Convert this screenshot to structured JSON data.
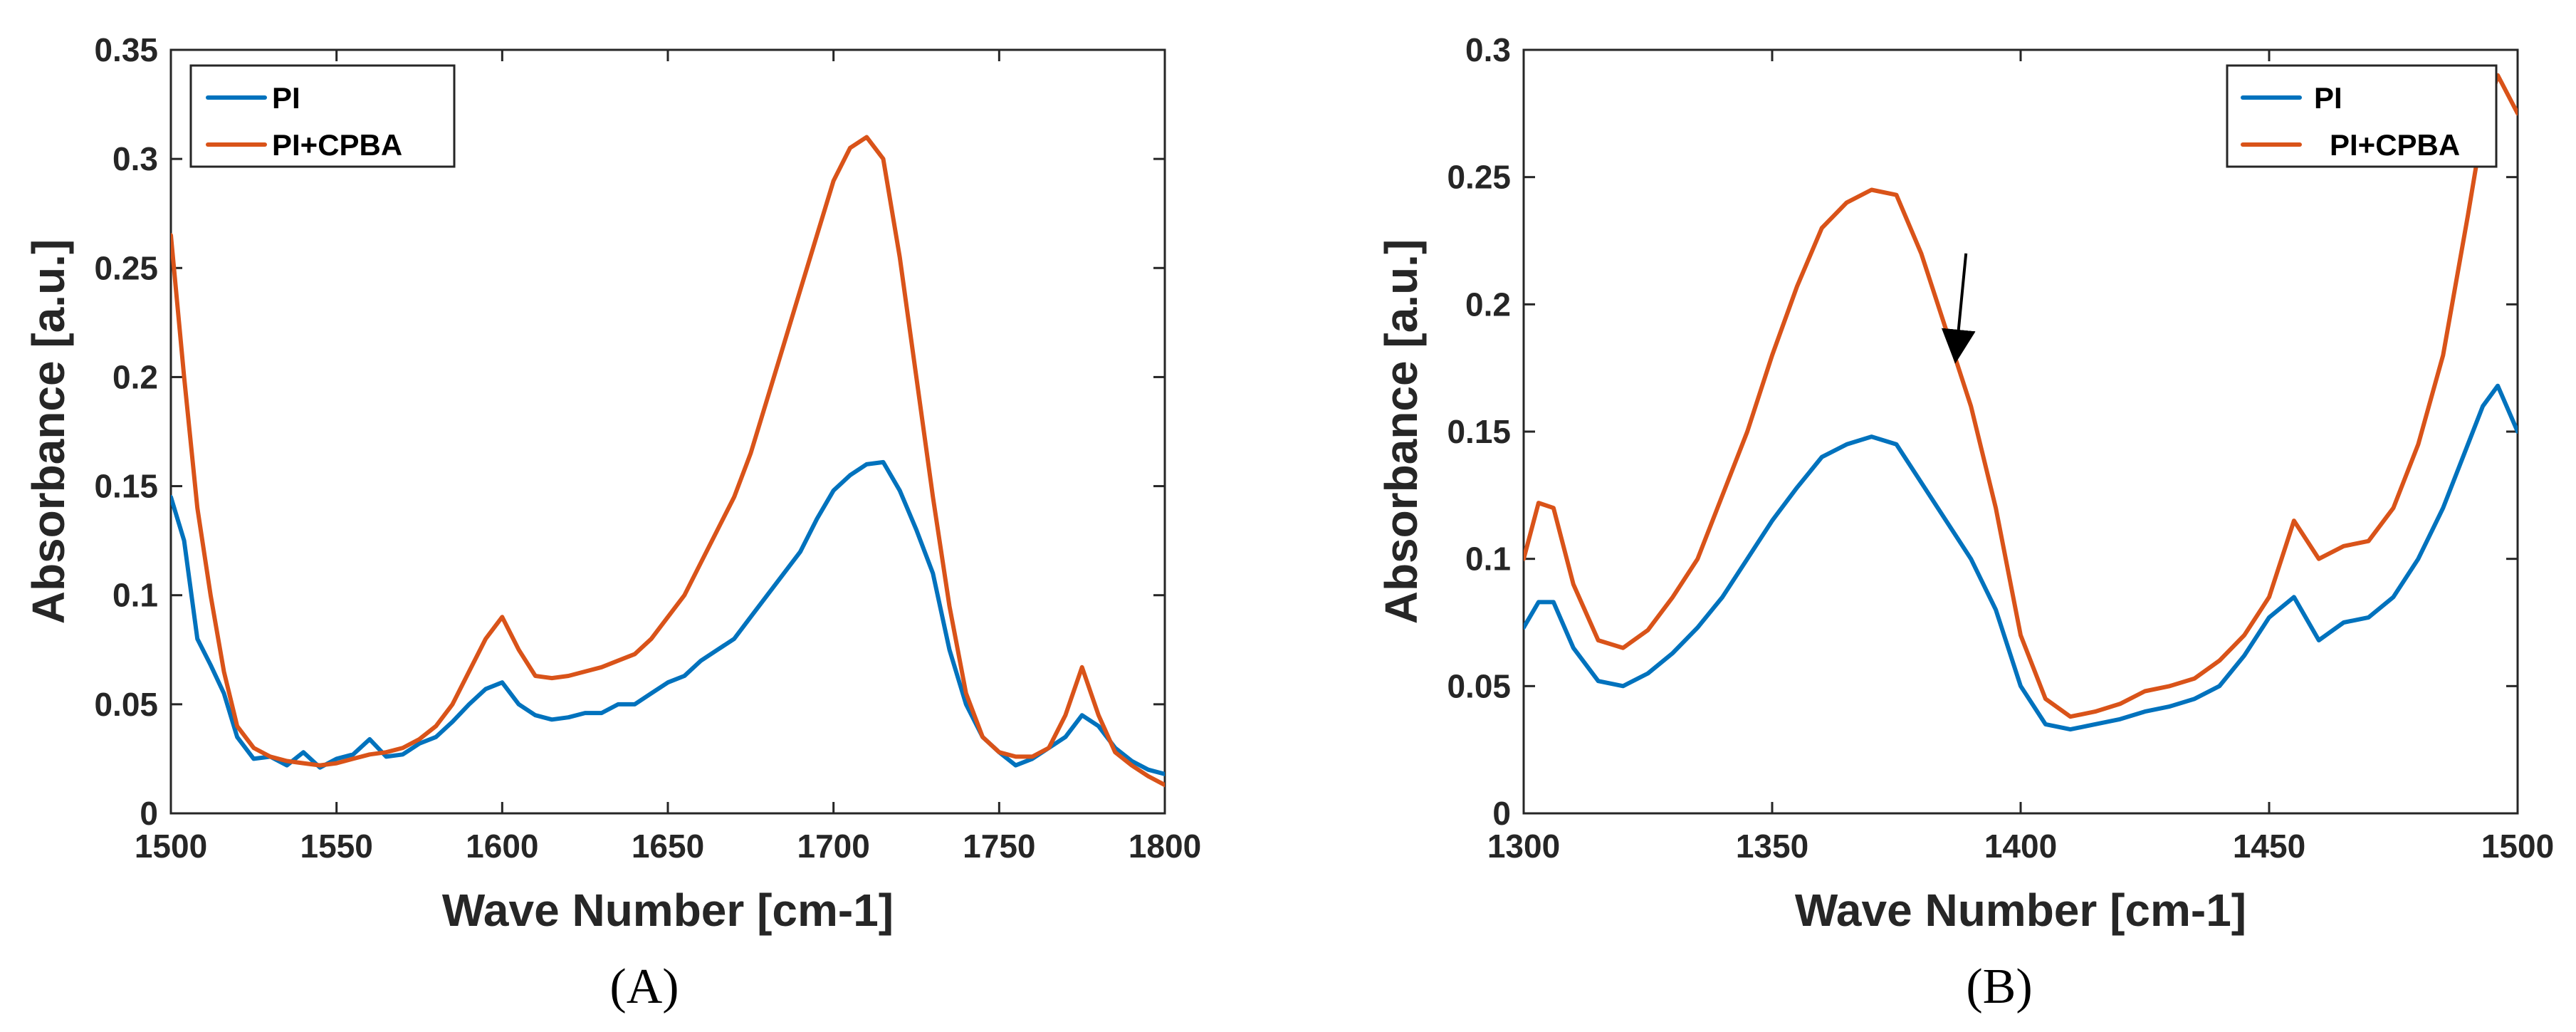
{
  "colors": {
    "PI": "#0072BD",
    "PI+CPBA": "#D95319",
    "axis": "#262626"
  },
  "chart_data": [
    {
      "type": "line",
      "panel": "A",
      "xlabel": "Wave Number [cm-1]",
      "ylabel": "Absorbance [a.u.]",
      "xlim": [
        1500,
        1800
      ],
      "ylim": [
        0,
        0.35
      ],
      "xticks": [
        "1500",
        "1550",
        "1600",
        "1650",
        "1700",
        "1750",
        "1800"
      ],
      "yticks": [
        "0",
        "0.05",
        "0.1",
        "0.15",
        "0.2",
        "0.25",
        "0.3",
        "0.35"
      ],
      "grid": false,
      "legend": [
        "PI",
        "PI+CPBA"
      ],
      "legend_position": "top-left",
      "series": [
        {
          "name": "PI",
          "x": [
            1500,
            1504,
            1508,
            1512,
            1516,
            1520,
            1525,
            1530,
            1535,
            1540,
            1545,
            1550,
            1555,
            1560,
            1565,
            1570,
            1575,
            1580,
            1585,
            1590,
            1595,
            1600,
            1605,
            1610,
            1615,
            1620,
            1625,
            1630,
            1635,
            1640,
            1645,
            1650,
            1655,
            1660,
            1665,
            1670,
            1675,
            1680,
            1685,
            1690,
            1695,
            1700,
            1705,
            1710,
            1715,
            1720,
            1725,
            1730,
            1735,
            1740,
            1745,
            1750,
            1755,
            1760,
            1765,
            1770,
            1775,
            1780,
            1785,
            1790,
            1795,
            1800
          ],
          "y": [
            0.145,
            0.125,
            0.08,
            0.068,
            0.055,
            0.035,
            0.025,
            0.026,
            0.022,
            0.028,
            0.021,
            0.025,
            0.027,
            0.034,
            0.026,
            0.027,
            0.032,
            0.035,
            0.042,
            0.05,
            0.057,
            0.06,
            0.05,
            0.045,
            0.043,
            0.044,
            0.046,
            0.046,
            0.05,
            0.05,
            0.055,
            0.06,
            0.063,
            0.07,
            0.075,
            0.08,
            0.09,
            0.1,
            0.11,
            0.12,
            0.135,
            0.148,
            0.155,
            0.16,
            0.161,
            0.148,
            0.13,
            0.11,
            0.075,
            0.05,
            0.035,
            0.028,
            0.022,
            0.025,
            0.03,
            0.035,
            0.045,
            0.04,
            0.03,
            0.024,
            0.02,
            0.018
          ]
        },
        {
          "name": "PI+CPBA",
          "x": [
            1500,
            1504,
            1508,
            1512,
            1516,
            1520,
            1525,
            1530,
            1535,
            1540,
            1545,
            1550,
            1555,
            1560,
            1565,
            1570,
            1575,
            1580,
            1585,
            1590,
            1595,
            1600,
            1605,
            1610,
            1615,
            1620,
            1625,
            1630,
            1635,
            1640,
            1645,
            1650,
            1655,
            1660,
            1665,
            1670,
            1675,
            1680,
            1685,
            1690,
            1695,
            1700,
            1705,
            1710,
            1715,
            1720,
            1725,
            1730,
            1735,
            1740,
            1745,
            1750,
            1755,
            1760,
            1765,
            1770,
            1775,
            1780,
            1785,
            1790,
            1795,
            1800
          ],
          "y": [
            0.265,
            0.2,
            0.14,
            0.1,
            0.065,
            0.04,
            0.03,
            0.026,
            0.024,
            0.023,
            0.022,
            0.023,
            0.025,
            0.027,
            0.028,
            0.03,
            0.034,
            0.04,
            0.05,
            0.065,
            0.08,
            0.09,
            0.075,
            0.063,
            0.062,
            0.063,
            0.065,
            0.067,
            0.07,
            0.073,
            0.08,
            0.09,
            0.1,
            0.115,
            0.13,
            0.145,
            0.165,
            0.19,
            0.215,
            0.24,
            0.265,
            0.29,
            0.305,
            0.31,
            0.3,
            0.255,
            0.2,
            0.145,
            0.095,
            0.055,
            0.035,
            0.028,
            0.026,
            0.026,
            0.03,
            0.045,
            0.067,
            0.045,
            0.028,
            0.022,
            0.017,
            0.013
          ]
        }
      ]
    },
    {
      "type": "line",
      "panel": "B",
      "xlabel": "Wave Number [cm-1]",
      "ylabel": "Absorbance [a.u.]",
      "xlim": [
        1300,
        1500
      ],
      "ylim": [
        0,
        0.3
      ],
      "xticks": [
        "1300",
        "1350",
        "1400",
        "1450",
        "1500"
      ],
      "yticks": [
        "0",
        "0.05",
        "0.1",
        "0.15",
        "0.2",
        "0.25",
        "0.3"
      ],
      "grid": false,
      "legend": [
        "PI",
        "PI+CPBA"
      ],
      "legend_position": "top-right",
      "annotation": {
        "type": "arrow",
        "from": [
          1389,
          0.22
        ],
        "to": [
          1387,
          0.18
        ]
      },
      "series": [
        {
          "name": "PI",
          "x": [
            1300,
            1303,
            1306,
            1310,
            1315,
            1320,
            1325,
            1330,
            1335,
            1340,
            1345,
            1350,
            1355,
            1360,
            1365,
            1370,
            1375,
            1380,
            1385,
            1390,
            1395,
            1400,
            1405,
            1410,
            1415,
            1420,
            1425,
            1430,
            1435,
            1440,
            1445,
            1450,
            1455,
            1460,
            1465,
            1470,
            1475,
            1480,
            1485,
            1490,
            1493,
            1496,
            1500
          ],
          "y": [
            0.073,
            0.083,
            0.083,
            0.065,
            0.052,
            0.05,
            0.055,
            0.063,
            0.073,
            0.085,
            0.1,
            0.115,
            0.128,
            0.14,
            0.145,
            0.148,
            0.145,
            0.13,
            0.115,
            0.1,
            0.08,
            0.05,
            0.035,
            0.033,
            0.035,
            0.037,
            0.04,
            0.042,
            0.045,
            0.05,
            0.062,
            0.077,
            0.085,
            0.068,
            0.075,
            0.077,
            0.085,
            0.1,
            0.12,
            0.145,
            0.16,
            0.168,
            0.15
          ]
        },
        {
          "name": "PI+CPBA",
          "x": [
            1300,
            1303,
            1306,
            1310,
            1315,
            1320,
            1325,
            1330,
            1335,
            1340,
            1345,
            1350,
            1355,
            1360,
            1365,
            1370,
            1375,
            1380,
            1385,
            1390,
            1395,
            1400,
            1405,
            1410,
            1415,
            1420,
            1425,
            1430,
            1435,
            1440,
            1445,
            1450,
            1455,
            1460,
            1465,
            1470,
            1475,
            1480,
            1485,
            1490,
            1493,
            1496,
            1500
          ],
          "y": [
            0.1,
            0.122,
            0.12,
            0.09,
            0.068,
            0.065,
            0.072,
            0.085,
            0.1,
            0.125,
            0.15,
            0.18,
            0.207,
            0.23,
            0.24,
            0.245,
            0.243,
            0.22,
            0.19,
            0.16,
            0.12,
            0.07,
            0.045,
            0.038,
            0.04,
            0.043,
            0.048,
            0.05,
            0.053,
            0.06,
            0.07,
            0.085,
            0.115,
            0.1,
            0.105,
            0.107,
            0.12,
            0.145,
            0.18,
            0.235,
            0.27,
            0.29,
            0.275
          ]
        }
      ]
    }
  ],
  "panel_labels": [
    "(A)",
    "(B)"
  ]
}
